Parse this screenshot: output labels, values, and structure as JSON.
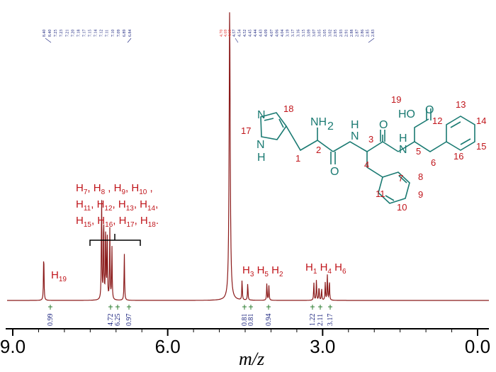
{
  "chart_data": {
    "type": "line",
    "title": "",
    "xlabel": "m/z",
    "ylabel": "",
    "xlim": [
      9.2,
      -0.05
    ],
    "x_ticks": [
      9.0,
      6.0,
      3.0,
      0.0
    ],
    "x_tick_labels": [
      "9.0",
      "6.0",
      "3.0",
      "0.0"
    ],
    "line_color": "#8b1a1a",
    "series": [
      {
        "peaks": [
          {
            "ppm": 8.4,
            "height": 0.17
          },
          {
            "ppm": 7.28,
            "height": 0.36
          },
          {
            "ppm": 7.24,
            "height": 0.3
          },
          {
            "ppm": 7.2,
            "height": 0.26
          },
          {
            "ppm": 7.17,
            "height": 0.22
          },
          {
            "ppm": 7.12,
            "height": 0.24
          },
          {
            "ppm": 7.08,
            "height": 0.18
          },
          {
            "ppm": 6.84,
            "height": 0.16
          },
          {
            "ppm": 4.8,
            "height": 1.0
          },
          {
            "ppm": 4.56,
            "height": 0.07
          },
          {
            "ppm": 4.45,
            "height": 0.06
          },
          {
            "ppm": 4.08,
            "height": 0.06
          },
          {
            "ppm": 4.04,
            "height": 0.05
          },
          {
            "ppm": 3.17,
            "height": 0.06
          },
          {
            "ppm": 3.12,
            "height": 0.07
          },
          {
            "ppm": 3.07,
            "height": 0.05
          },
          {
            "ppm": 3.02,
            "height": 0.04
          },
          {
            "ppm": 2.95,
            "height": 0.06
          },
          {
            "ppm": 2.91,
            "height": 0.09
          },
          {
            "ppm": 2.87,
            "height": 0.07
          }
        ]
      }
    ],
    "peak_labels": {
      "blue": [
        "8.40",
        "8.40",
        "7.25",
        "7.23",
        "7.21",
        "7.20",
        "7.18",
        "7.17",
        "7.15",
        "7.14",
        "7.12",
        "7.11",
        "7.10",
        "7.09",
        "6.89",
        "6.84"
      ],
      "red": [
        "4.70",
        "4.69",
        "4.60"
      ],
      "blue_mid": [
        "4.57",
        "4.54",
        "4.52",
        "4.45",
        "4.44",
        "4.43",
        "4.09",
        "4.07",
        "4.06",
        "4.04",
        "3.19",
        "3.17",
        "3.16",
        "3.15",
        "3.09",
        "3.07",
        "3.05",
        "3.05",
        "3.02",
        "2.95",
        "2.93",
        "2.91",
        "2.88",
        "2.87",
        "2.86",
        "2.85",
        "2.83"
      ]
    },
    "integrations": [
      {
        "ppm": 8.4,
        "value": "0.99"
      },
      {
        "ppm": 7.23,
        "value": "4.72"
      },
      {
        "ppm": 7.14,
        "value": "6.25"
      },
      {
        "ppm": 6.84,
        "value": "0.97"
      },
      {
        "ppm": 4.56,
        "value": "0.81"
      },
      {
        "ppm": 4.45,
        "value": "0.81"
      },
      {
        "ppm": 4.06,
        "value": "0.94"
      },
      {
        "ppm": 3.14,
        "value": "1.22"
      },
      {
        "ppm": 3.02,
        "value": "2.11"
      },
      {
        "ppm": 2.9,
        "value": "3.17"
      }
    ],
    "annotations": {
      "h19": "H19",
      "aromatic_lines": [
        "H7, H8 , H9, H10 ,",
        "H11, H12, H13, H14,",
        "H15, H16, H17, H18."
      ],
      "h3h5h2": "H3 H5 H2",
      "h1h4h6": "H1 H4 H6"
    },
    "structure": {
      "atoms": [
        "N",
        "H",
        "NH2",
        "N",
        "H",
        "O",
        "O",
        "N",
        "H",
        "HO",
        "O"
      ],
      "numbers": [
        "1",
        "2",
        "3",
        "4",
        "5",
        "6",
        "7",
        "8",
        "9",
        "10",
        "11",
        "12",
        "13",
        "14",
        "15",
        "16",
        "17",
        "18",
        "19"
      ],
      "atom_color": "#1a7a72",
      "number_color": "#c0151b"
    }
  }
}
